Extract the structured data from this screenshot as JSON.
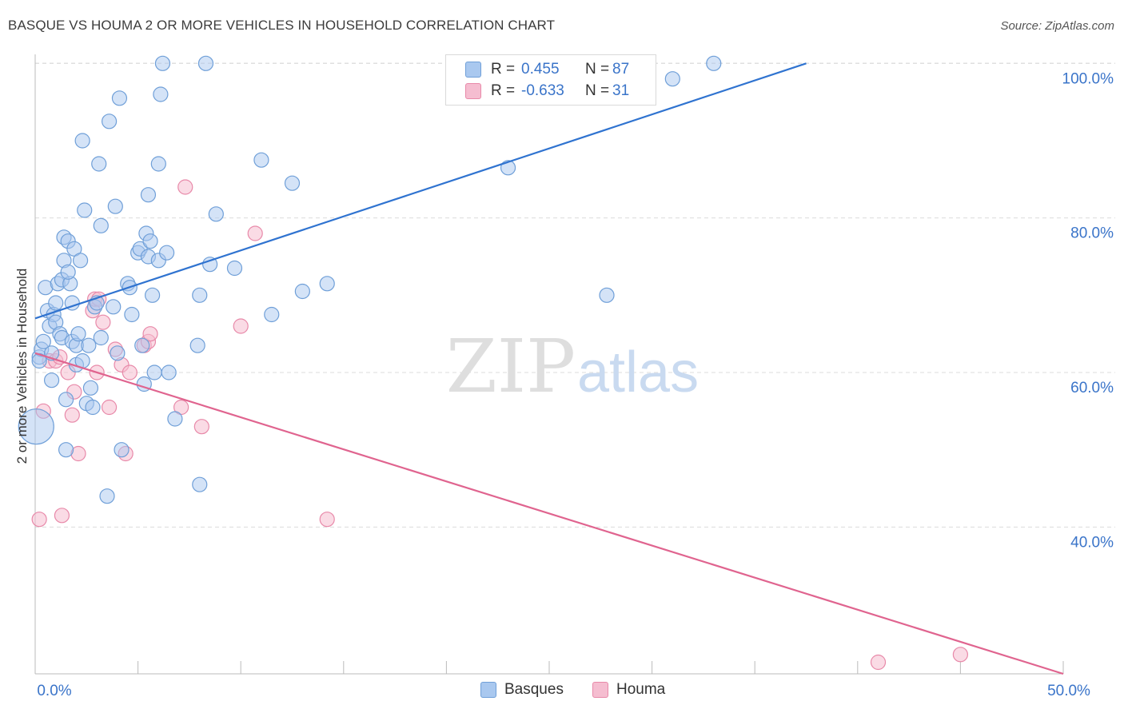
{
  "title": "BASQUE VS HOUMA 2 OR MORE VEHICLES IN HOUSEHOLD CORRELATION CHART",
  "source": "Source: ZipAtlas.com",
  "watermark": {
    "zip": "ZIP",
    "atlas": "atlas"
  },
  "colors": {
    "basques_fill": "#a9c8ef",
    "basques_stroke": "#6f9fd8",
    "basques_line": "#2f73d0",
    "houma_fill": "#f5bdd0",
    "houma_stroke": "#e889a9",
    "houma_line": "#e0648f",
    "axis_label": "#3a74c9",
    "grid": "#dcdcdc"
  },
  "legend": {
    "basques": {
      "r_label": "R =",
      "r_value": "0.455",
      "n_label": "N =",
      "n_value": "87"
    },
    "houma": {
      "r_label": "R =",
      "r_value": "-0.633",
      "n_label": "N =",
      "n_value": "31"
    }
  },
  "bottom_legend": {
    "basques": "Basques",
    "houma": "Houma"
  },
  "chart_data": {
    "type": "scatter",
    "ylabel": "2 or more Vehicles in Household",
    "xlim": [
      0,
      50
    ],
    "ylim": [
      21,
      102
    ],
    "x_tick_labels": [
      {
        "x": 0,
        "label": "0.0%"
      },
      {
        "x": 50,
        "label": "50.0%"
      }
    ],
    "y_tick_labels": [
      {
        "y": 100,
        "label": "100.0%"
      },
      {
        "y": 80,
        "label": "80.0%"
      },
      {
        "y": 60,
        "label": "60.0%"
      },
      {
        "y": 40,
        "label": "40.0%"
      }
    ],
    "grid": "horizontal dashed",
    "series": [
      {
        "name": "Basques",
        "trend": {
          "x": [
            0,
            37.5
          ],
          "y": [
            67.0,
            100.0
          ]
        },
        "points": [
          [
            0.2,
            62
          ],
          [
            0.3,
            63
          ],
          [
            0.4,
            64
          ],
          [
            0.5,
            71
          ],
          [
            0.6,
            68
          ],
          [
            0.7,
            66
          ],
          [
            0.8,
            59
          ],
          [
            0.9,
            67.5
          ],
          [
            1.0,
            69
          ],
          [
            1.0,
            66.5
          ],
          [
            1.1,
            71.5
          ],
          [
            1.2,
            65
          ],
          [
            1.3,
            64.5
          ],
          [
            1.3,
            72
          ],
          [
            1.4,
            74.5
          ],
          [
            1.4,
            77.5
          ],
          [
            1.5,
            56.5
          ],
          [
            1.5,
            50
          ],
          [
            1.6,
            77
          ],
          [
            1.7,
            71.5
          ],
          [
            1.8,
            69
          ],
          [
            1.8,
            64
          ],
          [
            1.9,
            76
          ],
          [
            2.0,
            61
          ],
          [
            2.0,
            63.5
          ],
          [
            2.1,
            65
          ],
          [
            2.2,
            74.5
          ],
          [
            2.3,
            90
          ],
          [
            2.3,
            61.5
          ],
          [
            2.4,
            81
          ],
          [
            2.5,
            56
          ],
          [
            2.6,
            63.5
          ],
          [
            2.8,
            55.5
          ],
          [
            2.9,
            68.5
          ],
          [
            3.0,
            69
          ],
          [
            3.1,
            87
          ],
          [
            3.2,
            79
          ],
          [
            3.2,
            64.5
          ],
          [
            3.6,
            92.5
          ],
          [
            3.9,
            81.5
          ],
          [
            4.0,
            62.5
          ],
          [
            4.1,
            95.5
          ],
          [
            4.2,
            50
          ],
          [
            4.5,
            71.5
          ],
          [
            4.6,
            71
          ],
          [
            4.7,
            67.5
          ],
          [
            5.0,
            75.5
          ],
          [
            5.1,
            76
          ],
          [
            5.2,
            63.5
          ],
          [
            5.3,
            58.5
          ],
          [
            5.4,
            78
          ],
          [
            5.5,
            83
          ],
          [
            5.5,
            75
          ],
          [
            5.6,
            77
          ],
          [
            5.7,
            70
          ],
          [
            5.8,
            60
          ],
          [
            6.0,
            87
          ],
          [
            6.0,
            74.5
          ],
          [
            6.1,
            96
          ],
          [
            6.2,
            100
          ],
          [
            6.4,
            75.5
          ],
          [
            6.5,
            60
          ],
          [
            6.8,
            54
          ],
          [
            7.9,
            63.5
          ],
          [
            8.0,
            70
          ],
          [
            8.0,
            45.5
          ],
          [
            8.3,
            100
          ],
          [
            8.5,
            74
          ],
          [
            8.8,
            80.5
          ],
          [
            9.7,
            73.5
          ],
          [
            11.0,
            87.5
          ],
          [
            11.5,
            67.5
          ],
          [
            12.5,
            84.5
          ],
          [
            13.0,
            70.5
          ],
          [
            14.2,
            71.5
          ],
          [
            0.05,
            53
          ],
          [
            0.2,
            61.5
          ],
          [
            23.0,
            86.5
          ],
          [
            27.8,
            70
          ],
          [
            31.0,
            98
          ],
          [
            33.0,
            100
          ],
          [
            3.5,
            44
          ],
          [
            3.8,
            68.5
          ],
          [
            2.7,
            58
          ],
          [
            1.6,
            73
          ],
          [
            0.8,
            62.5
          ],
          [
            20.5,
            100
          ]
        ]
      },
      {
        "name": "Houma",
        "trend": {
          "x": [
            0,
            50
          ],
          "y": [
            62.5,
            21.0
          ]
        },
        "points": [
          [
            0.2,
            41
          ],
          [
            0.4,
            55
          ],
          [
            0.7,
            61.5
          ],
          [
            1.0,
            61.5
          ],
          [
            1.2,
            62
          ],
          [
            1.3,
            41.5
          ],
          [
            1.6,
            60
          ],
          [
            1.8,
            54.5
          ],
          [
            1.9,
            57.5
          ],
          [
            2.1,
            49.5
          ],
          [
            2.8,
            68
          ],
          [
            2.9,
            69.5
          ],
          [
            3.0,
            60
          ],
          [
            3.1,
            69.5
          ],
          [
            3.3,
            66.5
          ],
          [
            3.6,
            55.5
          ],
          [
            3.9,
            63
          ],
          [
            4.2,
            61
          ],
          [
            4.4,
            49.5
          ],
          [
            4.6,
            60
          ],
          [
            5.3,
            63.5
          ],
          [
            5.5,
            64
          ],
          [
            5.6,
            65
          ],
          [
            7.1,
            55.5
          ],
          [
            7.3,
            84
          ],
          [
            8.1,
            53
          ],
          [
            10.0,
            66
          ],
          [
            10.7,
            78
          ],
          [
            14.2,
            41
          ],
          [
            41.0,
            22.5
          ],
          [
            45.0,
            23.5
          ]
        ]
      }
    ]
  }
}
